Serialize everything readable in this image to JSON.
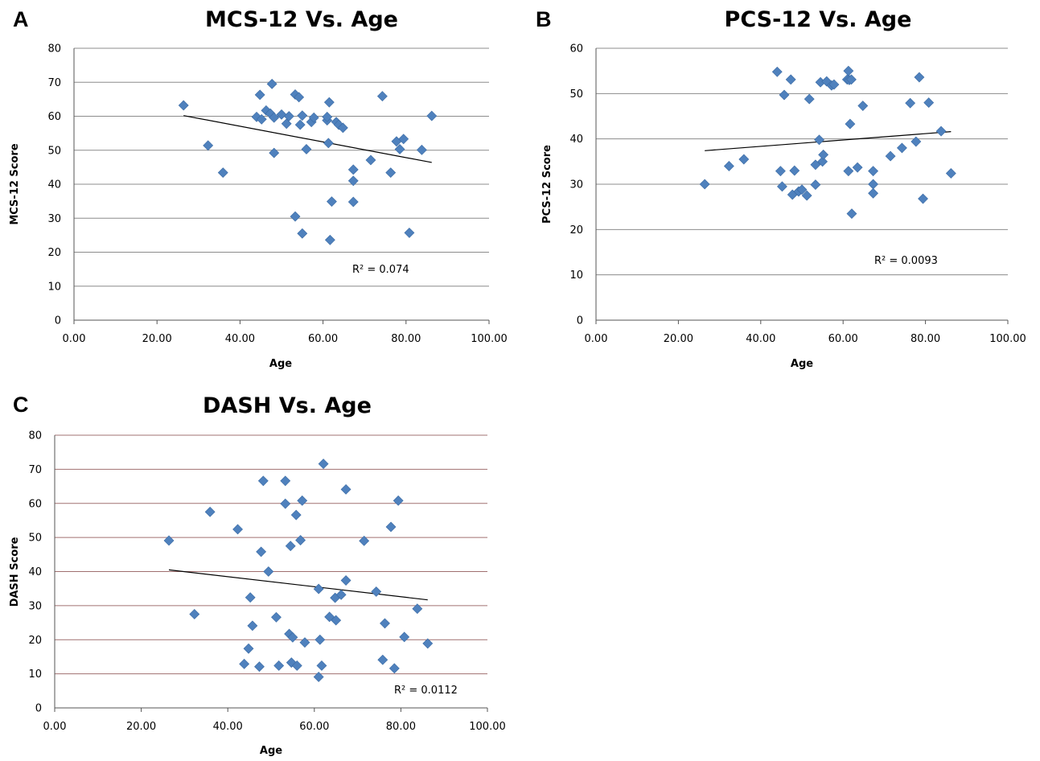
{
  "chart_data": [
    {
      "type": "scatter",
      "panel": "A",
      "title": "MCS-12 Vs. Age",
      "xlabel": "Age",
      "ylabel": "MCS-12 Score",
      "xlim": [
        0,
        100
      ],
      "ylim": [
        0,
        80
      ],
      "xticks": [
        0,
        20,
        40,
        60,
        80,
        100
      ],
      "xtick_labels": [
        "0.00",
        "20.00",
        "40.00",
        "60.00",
        "80.00",
        "100.00"
      ],
      "yticks": [
        0,
        10,
        20,
        30,
        40,
        50,
        60,
        70,
        80
      ],
      "ytick_labels": [
        "0",
        "10",
        "20",
        "30",
        "40",
        "50",
        "60",
        "70",
        "80"
      ],
      "grid": "horizontal",
      "gridline_color": "#8c8c8c",
      "marker_color": "#4f81bd",
      "trendline": {
        "x": [
          26.4,
          86.2
        ],
        "y": [
          60.2,
          46.4
        ]
      },
      "annotation": "R² = 0.074",
      "points": [
        [
          26.4,
          63.2
        ],
        [
          32.3,
          51.4
        ],
        [
          35.9,
          43.4
        ],
        [
          44.0,
          59.8
        ],
        [
          44.8,
          66.3
        ],
        [
          45.2,
          59.1
        ],
        [
          46.3,
          61.7
        ],
        [
          47.3,
          60.8
        ],
        [
          47.7,
          69.5
        ],
        [
          48.2,
          59.6
        ],
        [
          48.2,
          49.2
        ],
        [
          50.0,
          60.5
        ],
        [
          51.2,
          57.8
        ],
        [
          51.8,
          60.0
        ],
        [
          53.3,
          66.4
        ],
        [
          53.3,
          30.5
        ],
        [
          54.2,
          65.6
        ],
        [
          54.5,
          57.5
        ],
        [
          55.0,
          25.5
        ],
        [
          55.0,
          60.2
        ],
        [
          56.0,
          50.3
        ],
        [
          57.2,
          58.3
        ],
        [
          57.8,
          59.6
        ],
        [
          61.0,
          58.8
        ],
        [
          61.0,
          59.8
        ],
        [
          61.3,
          52.1
        ],
        [
          61.5,
          64.1
        ],
        [
          61.7,
          23.6
        ],
        [
          62.1,
          34.9
        ],
        [
          63.2,
          58.3
        ],
        [
          63.8,
          57.5
        ],
        [
          64.8,
          56.6
        ],
        [
          67.3,
          44.3
        ],
        [
          67.3,
          41.0
        ],
        [
          67.3,
          34.8
        ],
        [
          71.5,
          47.1
        ],
        [
          74.3,
          65.9
        ],
        [
          76.3,
          43.4
        ],
        [
          77.7,
          52.6
        ],
        [
          78.5,
          50.3
        ],
        [
          79.4,
          53.3
        ],
        [
          80.8,
          25.7
        ],
        [
          83.8,
          50.1
        ],
        [
          86.2,
          60.1
        ]
      ]
    },
    {
      "type": "scatter",
      "panel": "B",
      "title": "PCS-12 Vs. Age",
      "xlabel": "Age",
      "ylabel": "PCS-12 Score",
      "xlim": [
        0,
        100
      ],
      "ylim": [
        0,
        60
      ],
      "xticks": [
        0,
        20,
        40,
        60,
        80,
        100
      ],
      "xtick_labels": [
        "0.00",
        "20.00",
        "40.00",
        "60.00",
        "80.00",
        "100.00"
      ],
      "yticks": [
        0,
        10,
        20,
        30,
        40,
        50,
        60
      ],
      "ytick_labels": [
        "0",
        "10",
        "20",
        "30",
        "40",
        "50",
        "60"
      ],
      "grid": "horizontal",
      "gridline_color": "#8c8c8c",
      "marker_color": "#4f81bd",
      "trendline": {
        "x": [
          26.4,
          86.2
        ],
        "y": [
          37.4,
          41.6
        ]
      },
      "annotation": "R² = 0.0093",
      "points": [
        [
          26.4,
          30.0
        ],
        [
          32.3,
          34.0
        ],
        [
          35.9,
          35.5
        ],
        [
          44.0,
          54.8
        ],
        [
          44.8,
          32.9
        ],
        [
          45.2,
          29.5
        ],
        [
          45.7,
          49.7
        ],
        [
          47.3,
          53.1
        ],
        [
          47.7,
          27.7
        ],
        [
          48.2,
          33.0
        ],
        [
          49.2,
          28.4
        ],
        [
          50.0,
          28.8
        ],
        [
          51.2,
          27.5
        ],
        [
          51.8,
          48.8
        ],
        [
          53.3,
          29.9
        ],
        [
          53.3,
          34.3
        ],
        [
          54.2,
          39.8
        ],
        [
          54.5,
          52.5
        ],
        [
          55.0,
          35.0
        ],
        [
          55.2,
          36.5
        ],
        [
          56.0,
          52.7
        ],
        [
          57.2,
          51.8
        ],
        [
          57.8,
          52.0
        ],
        [
          61.0,
          53.1
        ],
        [
          61.3,
          32.9
        ],
        [
          61.3,
          55.0
        ],
        [
          61.5,
          53.0
        ],
        [
          61.7,
          43.3
        ],
        [
          62.0,
          53.1
        ],
        [
          62.1,
          23.5
        ],
        [
          63.5,
          33.7
        ],
        [
          64.8,
          47.3
        ],
        [
          67.3,
          32.9
        ],
        [
          67.3,
          30.0
        ],
        [
          67.3,
          28.0
        ],
        [
          71.5,
          36.2
        ],
        [
          74.3,
          38.0
        ],
        [
          76.3,
          47.9
        ],
        [
          77.7,
          39.4
        ],
        [
          78.5,
          53.6
        ],
        [
          79.4,
          26.8
        ],
        [
          80.8,
          48.0
        ],
        [
          83.8,
          41.7
        ],
        [
          86.2,
          32.4
        ]
      ]
    },
    {
      "type": "scatter",
      "panel": "C",
      "title": "DASH Vs. Age",
      "xlabel": "Age",
      "ylabel": "DASH Score",
      "xlim": [
        0,
        100
      ],
      "ylim": [
        0,
        80
      ],
      "xticks": [
        0,
        20,
        40,
        60,
        80,
        100
      ],
      "xtick_labels": [
        "0.00",
        "20.00",
        "40.00",
        "60.00",
        "80.00",
        "100.00"
      ],
      "yticks": [
        0,
        10,
        20,
        30,
        40,
        50,
        60,
        70,
        80
      ],
      "ytick_labels": [
        "0",
        "10",
        "20",
        "30",
        "40",
        "50",
        "60",
        "70",
        "80"
      ],
      "grid": "horizontal",
      "gridline_color": "#a07070",
      "marker_color": "#4f81bd",
      "trendline": {
        "x": [
          26.4,
          86.2
        ],
        "y": [
          40.5,
          31.7
        ]
      },
      "annotation": "R² = 0.0112",
      "points": [
        [
          26.4,
          49.1
        ],
        [
          32.3,
          27.5
        ],
        [
          35.9,
          57.5
        ],
        [
          42.3,
          52.4
        ],
        [
          43.8,
          12.9
        ],
        [
          44.8,
          17.4
        ],
        [
          45.2,
          32.4
        ],
        [
          45.7,
          24.1
        ],
        [
          47.3,
          12.1
        ],
        [
          47.7,
          45.8
        ],
        [
          48.2,
          66.6
        ],
        [
          49.4,
          40.0
        ],
        [
          51.2,
          26.6
        ],
        [
          51.8,
          12.4
        ],
        [
          53.3,
          66.6
        ],
        [
          53.3,
          59.9
        ],
        [
          54.2,
          21.7
        ],
        [
          54.5,
          47.5
        ],
        [
          54.7,
          13.3
        ],
        [
          55.0,
          20.7
        ],
        [
          55.8,
          56.6
        ],
        [
          56.0,
          12.4
        ],
        [
          56.8,
          49.2
        ],
        [
          57.2,
          60.8
        ],
        [
          57.8,
          19.2
        ],
        [
          61.0,
          34.9
        ],
        [
          61.0,
          9.1
        ],
        [
          61.3,
          20.0
        ],
        [
          61.7,
          12.4
        ],
        [
          62.1,
          71.6
        ],
        [
          63.5,
          26.7
        ],
        [
          64.8,
          32.3
        ],
        [
          65.0,
          25.7
        ],
        [
          66.2,
          33.2
        ],
        [
          67.3,
          37.4
        ],
        [
          67.3,
          64.1
        ],
        [
          71.5,
          49.0
        ],
        [
          74.3,
          34.1
        ],
        [
          75.8,
          14.1
        ],
        [
          76.3,
          24.8
        ],
        [
          77.7,
          53.1
        ],
        [
          78.5,
          11.6
        ],
        [
          79.4,
          60.8
        ],
        [
          80.8,
          20.8
        ],
        [
          83.8,
          29.1
        ],
        [
          86.2,
          18.9
        ]
      ]
    }
  ]
}
